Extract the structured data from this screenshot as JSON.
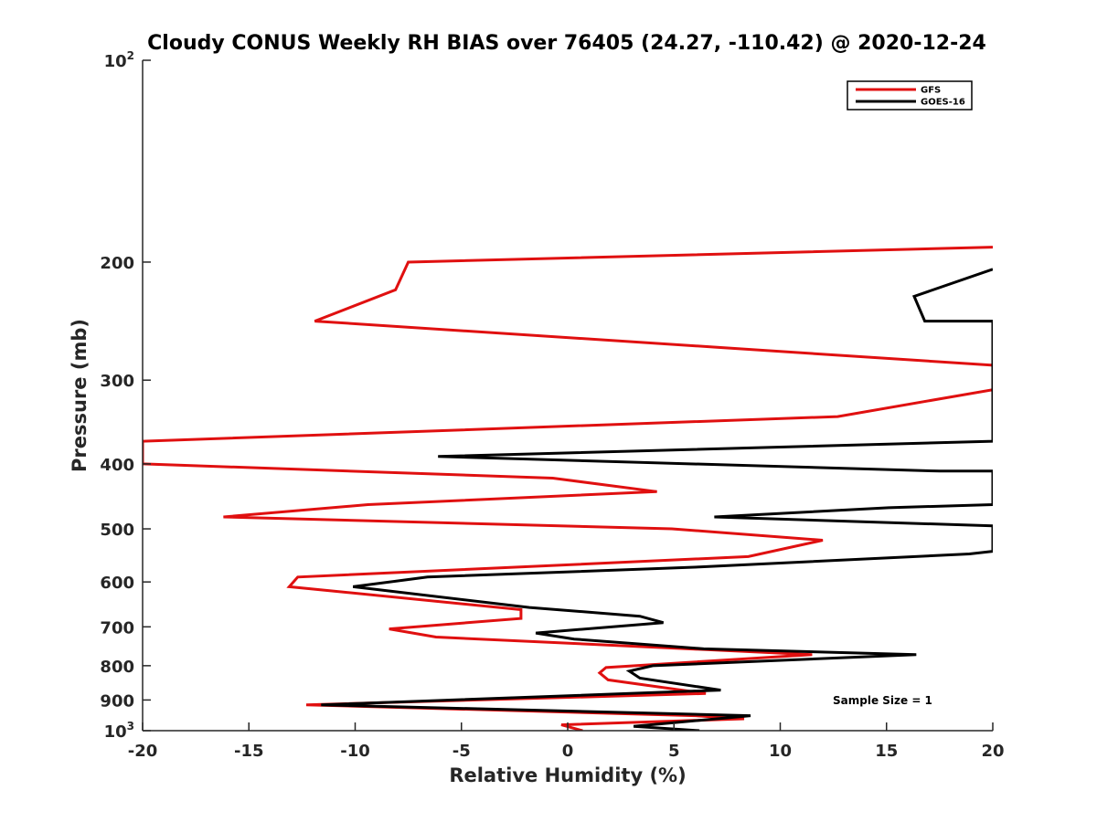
{
  "chart_data": {
    "type": "line",
    "title": "Cloudy CONUS Weekly RH BIAS over 76405 (24.27, -110.42) @ 2020-12-24",
    "xlabel": "Relative Humidity (%)",
    "ylabel": "Pressure (mb)",
    "xlim": [
      -20,
      20
    ],
    "ylim": [
      100,
      1000
    ],
    "yscale": "log",
    "y_reversed": true,
    "grid": false,
    "legend_position": "top-right",
    "x_ticks": [
      "-20",
      "-15",
      "-10",
      "-5",
      "0",
      "5",
      "10",
      "15",
      "20"
    ],
    "x_tick_values": [
      -20,
      -15,
      -10,
      -5,
      0,
      5,
      10,
      15,
      20
    ],
    "y_ticks": [
      {
        "value": 100,
        "base": "10",
        "exp": "2"
      },
      {
        "value": 200,
        "label": "200"
      },
      {
        "value": 300,
        "label": "300"
      },
      {
        "value": 400,
        "label": "400"
      },
      {
        "value": 500,
        "label": "500"
      },
      {
        "value": 600,
        "label": "600"
      },
      {
        "value": 700,
        "label": "700"
      },
      {
        "value": 800,
        "label": "800"
      },
      {
        "value": 900,
        "label": "900"
      },
      {
        "value": 1000,
        "base": "10",
        "exp": "3"
      }
    ],
    "series": [
      {
        "name": "GFS",
        "color": "#e01010",
        "points": [
          [
            20,
            190
          ],
          [
            -7.5,
            200
          ],
          [
            -8.1,
            220
          ],
          [
            -11.9,
            245
          ],
          [
            20,
            285
          ],
          [
            20,
            310
          ],
          [
            12.7,
            340
          ],
          [
            -20,
            370
          ],
          [
            -20,
            400
          ],
          [
            -0.7,
            420
          ],
          [
            4.2,
            440
          ],
          [
            -9.4,
            460
          ],
          [
            -16.2,
            480
          ],
          [
            4.9,
            500
          ],
          [
            12.0,
            520
          ],
          [
            8.5,
            550
          ],
          [
            -12.7,
            590
          ],
          [
            -13.1,
            610
          ],
          [
            -2.2,
            660
          ],
          [
            -2.2,
            680
          ],
          [
            -8.4,
            705
          ],
          [
            -6.2,
            725
          ],
          [
            11.5,
            770
          ],
          [
            1.8,
            805
          ],
          [
            1.5,
            820
          ],
          [
            1.9,
            840
          ],
          [
            6.5,
            880
          ],
          [
            -12.3,
            915
          ],
          [
            6.0,
            950
          ],
          [
            8.3,
            960
          ],
          [
            -0.3,
            980
          ],
          [
            0.7,
            1000
          ]
        ]
      },
      {
        "name": "GOES-16",
        "color": "#000000",
        "points": [
          [
            20,
            205
          ],
          [
            16.3,
            225
          ],
          [
            16.8,
            245
          ],
          [
            20,
            245
          ],
          [
            20,
            370
          ],
          [
            -6.1,
            390
          ],
          [
            17.5,
            410
          ],
          [
            20,
            410
          ],
          [
            20,
            460
          ],
          [
            15.1,
            465
          ],
          [
            6.9,
            480
          ],
          [
            20,
            495
          ],
          [
            20,
            540
          ],
          [
            18.9,
            545
          ],
          [
            6.2,
            570
          ],
          [
            -6.6,
            590
          ],
          [
            -10.1,
            610
          ],
          [
            -1.8,
            655
          ],
          [
            3.4,
            675
          ],
          [
            4.5,
            690
          ],
          [
            -1.5,
            715
          ],
          [
            0.3,
            730
          ],
          [
            6.4,
            755
          ],
          [
            16.4,
            770
          ],
          [
            4.0,
            800
          ],
          [
            2.9,
            815
          ],
          [
            3.4,
            835
          ],
          [
            7.2,
            870
          ],
          [
            -11.6,
            915
          ],
          [
            8.6,
            950
          ],
          [
            3.1,
            985
          ],
          [
            6.2,
            1000
          ]
        ]
      }
    ],
    "annotation": "Sample Size = 1"
  }
}
